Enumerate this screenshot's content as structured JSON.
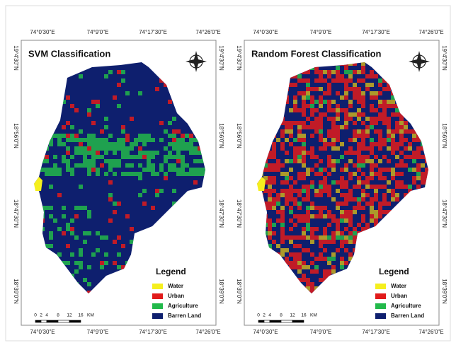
{
  "maps": [
    {
      "title": "SVM Classification",
      "top_coords": [
        "74°0'30\"E",
        "74°9'0\"E",
        "74°17'30\"E",
        "74°26'0\"E"
      ],
      "bottom_coords": [
        "74°0'30\"E",
        "74°9'0\"E",
        "74°17'30\"E",
        "74°26'0\"E"
      ],
      "left_coords": [
        "19°4'30\"N",
        "18°56'0\"N",
        "18°47'30\"N",
        "18°39'0\"N"
      ],
      "right_coords": [
        "19°4'30\"N",
        "18°56'0\"N",
        "18°47'30\"N",
        "18°39'0\"N"
      ],
      "legend_title": "Legend",
      "legend": [
        {
          "label": "Water",
          "color": "#f5ef1e"
        },
        {
          "label": "Urban",
          "color": "#e11b1b"
        },
        {
          "label": "Agriculture",
          "color": "#22b94a"
        },
        {
          "label": "Barren Land",
          "color": "#0e1f6e"
        }
      ],
      "scale_labels": [
        "0",
        "2",
        "4",
        "8",
        "12",
        "16",
        "KM"
      ]
    },
    {
      "title": "Random Forest Classification",
      "top_coords": [
        "74°0'30\"E",
        "74°9'0\"E",
        "74°17'30\"E",
        "74°26'0\"E"
      ],
      "bottom_coords": [
        "74°0'30\"E",
        "74°9'0\"E",
        "74°17'30\"E",
        "74°26'0\"E"
      ],
      "left_coords": [
        "19°4'30\"N",
        "18°56'0\"N",
        "18°47'30\"N",
        "18°39'0\"N"
      ],
      "right_coords": [
        "19°4'30\"N",
        "18°56'0\"N",
        "18°47'30\"N",
        "18°39'0\"N"
      ],
      "legend_title": "Legend",
      "legend": [
        {
          "label": "Water",
          "color": "#f5ef1e"
        },
        {
          "label": "Urban",
          "color": "#e11b1b"
        },
        {
          "label": "Agriculture",
          "color": "#22b94a"
        },
        {
          "label": "Barren Land",
          "color": "#0e1f6e"
        }
      ],
      "scale_labels": [
        "0",
        "2",
        "4",
        "8",
        "12",
        "16",
        "KM"
      ]
    }
  ]
}
